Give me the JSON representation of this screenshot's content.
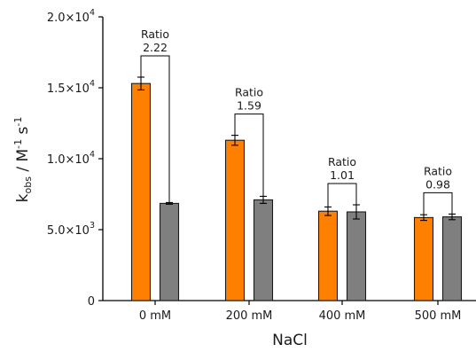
{
  "chart_data": {
    "type": "bar",
    "categories": [
      "0 mM",
      "200 mM",
      "400 mM",
      "500 mM"
    ],
    "series": [
      {
        "values": [
          15300,
          11300,
          6300,
          5850
        ],
        "errors": [
          450,
          350,
          300,
          200
        ],
        "color": "#ff7f00"
      },
      {
        "values": [
          6850,
          7100,
          6250,
          5900
        ],
        "errors": [
          60,
          250,
          500,
          200
        ],
        "color": "#7f7f7f"
      }
    ],
    "ratios": [
      {
        "label": "Ratio",
        "value": "2.22"
      },
      {
        "label": "Ratio",
        "value": "1.59"
      },
      {
        "label": "Ratio",
        "value": "1.01"
      },
      {
        "label": "Ratio",
        "value": "0.98"
      }
    ],
    "yticks": [
      {
        "value": 0,
        "mantissa": "0",
        "exp": ""
      },
      {
        "value": 5000,
        "mantissa": "5.0×10",
        "exp": "3"
      },
      {
        "value": 10000,
        "mantissa": "1.0×10",
        "exp": "4"
      },
      {
        "value": 15000,
        "mantissa": "1.5×10",
        "exp": "4"
      },
      {
        "value": 20000,
        "mantissa": "2.0×10",
        "exp": "4"
      }
    ],
    "ylim": [
      0,
      20000
    ],
    "xlabel": "NaCl",
    "ylabel": {
      "base": "k",
      "sub": "obs",
      "mid": " / M",
      "sup1": "-1",
      "mid2": " s",
      "sup2": "-1"
    },
    "grid": false,
    "legend": "none"
  }
}
